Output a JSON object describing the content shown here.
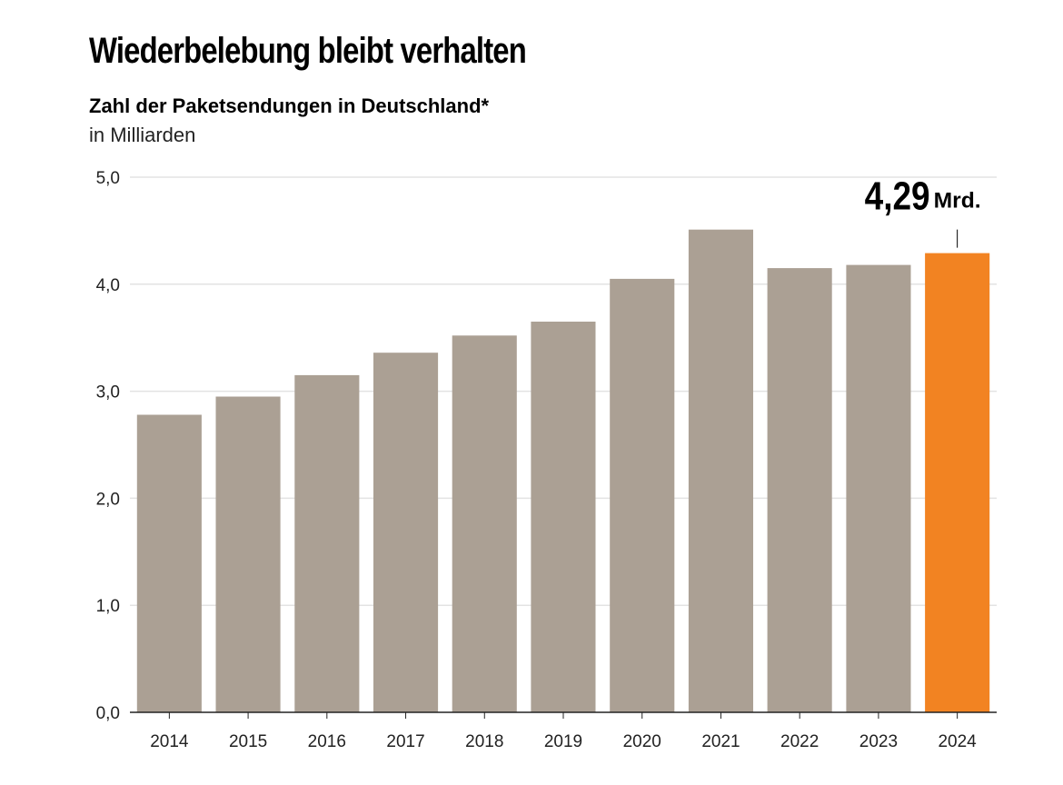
{
  "header": {
    "title": "Wiederbelebung bleibt verhalten",
    "subtitle": "Zahl der Paketsendungen in Deutschland*",
    "unit_label": "in Milliarden"
  },
  "callout": {
    "value": "4,29",
    "unit": "Mrd."
  },
  "colors": {
    "bar": "#aba094",
    "highlight": "#f28322",
    "grid": "#e3e3e3",
    "axis": "#222222"
  },
  "chart_data": {
    "type": "bar",
    "title": "Wiederbelebung bleibt verhalten",
    "subtitle": "Zahl der Paketsendungen in Deutschland*",
    "ylabel": "in Milliarden",
    "categories": [
      "2014",
      "2015",
      "2016",
      "2017",
      "2018",
      "2019",
      "2020",
      "2021",
      "2022",
      "2023",
      "2024"
    ],
    "values": [
      2.78,
      2.95,
      3.15,
      3.36,
      3.52,
      3.65,
      4.05,
      4.51,
      4.15,
      4.18,
      4.29
    ],
    "highlight_category": "2024",
    "ylim": [
      0,
      5
    ],
    "yticks": [
      "0,0",
      "1,0",
      "2,0",
      "3,0",
      "4,0",
      "5,0"
    ],
    "grid": true
  }
}
